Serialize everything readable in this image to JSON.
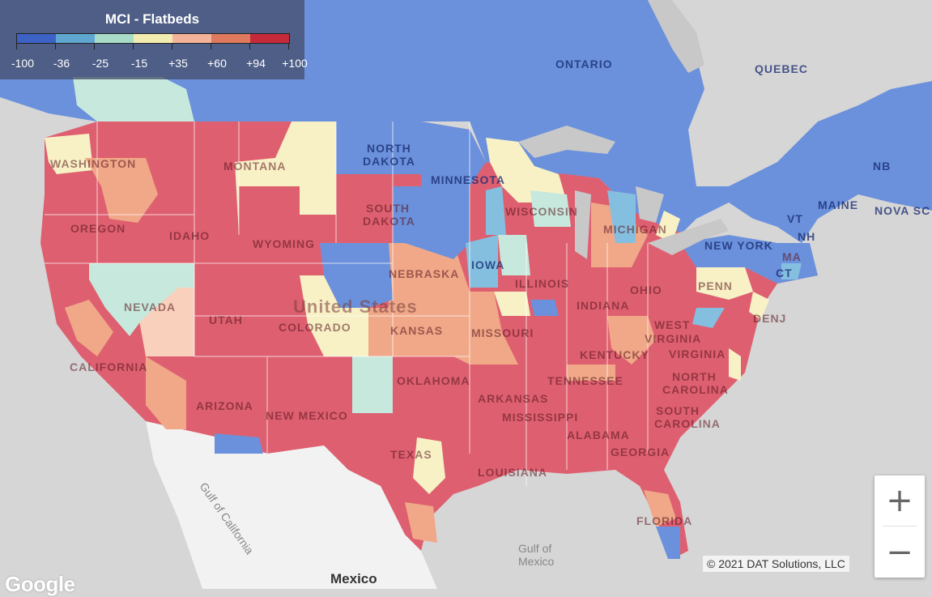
{
  "legend": {
    "title": "MCI - Flatbeds",
    "colors": [
      "#3b62c4",
      "#5fa7d0",
      "#a8dcc8",
      "#f3ecb0",
      "#f2b39a",
      "#e07a5f",
      "#c42a3a"
    ],
    "ticks": [
      "-100",
      "-36",
      "-25",
      "-15",
      "+35",
      "+60",
      "+94",
      "+100"
    ]
  },
  "colors": {
    "water": "#d6d6d6",
    "canada": "#6b91dc",
    "land_gray": "#f2f2f2",
    "red": "#de6070",
    "light_red": "#f0a888",
    "yellow": "#f8f1c6",
    "blue": "#6b91dc",
    "light_blue": "#85bfe0",
    "teal": "#c7e9dd"
  },
  "labels": {
    "canada": [
      "ONTARIO",
      "QUEBEC",
      "NB",
      "NOVA SC"
    ],
    "states": [
      "WASHINGTON",
      "MONTANA",
      "NORTH",
      "DAKOTA",
      "MINNESOTA",
      "OREGON",
      "IDAHO",
      "SOUTH",
      "DAKOTA",
      "WISCONSIN",
      "MICHIGAN",
      "WYOMING",
      "MAINE",
      "NEW YORK",
      "NEBRASKA",
      "IOWA",
      "NEVADA",
      "PENN",
      "ILLINOIS",
      "INDIANA",
      "OHIO",
      "UTAH",
      "COLORADO",
      "KANSAS",
      "MISSOURI",
      "CALIFORNIA",
      "WEST",
      "VIRGINIA",
      "KENTUCKY",
      "VIRGINIA",
      "TENNESSEE",
      "OKLAHOMA",
      "ARIZONA",
      "NEW MEXICO",
      "ARKANSAS",
      "NORTH",
      "CAROLINA",
      "SOUTH",
      "CAROLINA",
      "MISSISSIPPI",
      "ALABAMA",
      "GEORGIA",
      "TEXAS",
      "LOUISIANA",
      "FLORIDA",
      "DENJ",
      "VT",
      "NH",
      "MA",
      "CT"
    ],
    "country": "United States",
    "mexico": "Mexico",
    "gulf_mexico": "Gulf of\nMexico",
    "gulf_california": "Gulf of California"
  },
  "zoom": {
    "in": "+",
    "out": "−"
  },
  "copyright": "© 2021 DAT Solutions, LLC",
  "logo": "Google"
}
